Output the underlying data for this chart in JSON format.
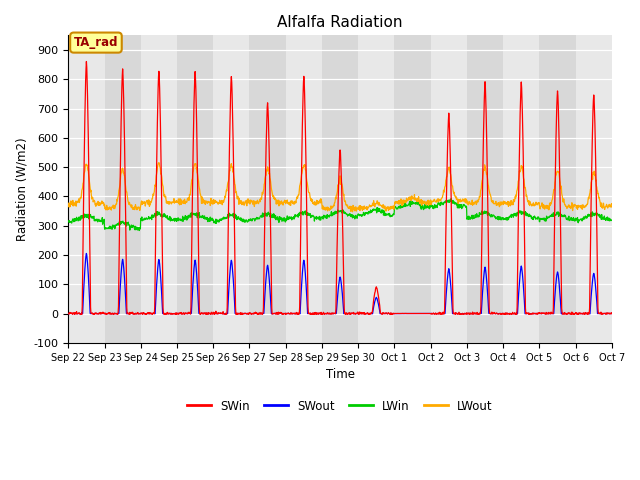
{
  "title": "Alfalfa Radiation",
  "ylabel": "Radiation (W/m2)",
  "xlabel": "Time",
  "annotation": "TA_rad",
  "ylim": [
    -100,
    950
  ],
  "yticks": [
    -100,
    0,
    100,
    200,
    300,
    400,
    500,
    600,
    700,
    800,
    900
  ],
  "xtick_labels": [
    "Sep 22",
    "Sep 23",
    "Sep 24",
    "Sep 25",
    "Sep 26",
    "Sep 27",
    "Sep 28",
    "Sep 29",
    "Sep 30",
    "Oct 1",
    "Oct 2",
    "Oct 3",
    "Oct 4",
    "Oct 5",
    "Oct 6",
    "Oct 7"
  ],
  "colors": {
    "SWin": "#ff0000",
    "SWout": "#0000ff",
    "LWin": "#00cc00",
    "LWout": "#ffaa00",
    "background": "#e8e8e8",
    "band_light": "#e8e8e8",
    "band_dark": "#d8d8d8",
    "annotation_bg": "#ffff99",
    "annotation_border": "#cc8800"
  },
  "n_days": 15,
  "dt": 0.25,
  "title_fontsize": 11,
  "SWin_peaks": [
    860,
    835,
    830,
    825,
    810,
    720,
    810,
    560,
    90,
    0,
    680,
    790,
    790,
    760,
    750
  ],
  "SWout_peaks": [
    205,
    185,
    185,
    182,
    182,
    165,
    182,
    125,
    55,
    0,
    152,
    158,
    162,
    142,
    138
  ],
  "LWin_base": 315,
  "LWout_base": 375,
  "LWin_day_offsets": [
    0,
    -25,
    5,
    5,
    0,
    5,
    10,
    15,
    20,
    45,
    50,
    10,
    10,
    5,
    5
  ],
  "LWout_day_offsets": [
    0,
    -15,
    5,
    5,
    5,
    5,
    5,
    -15,
    -15,
    5,
    10,
    0,
    0,
    -10,
    -10
  ]
}
